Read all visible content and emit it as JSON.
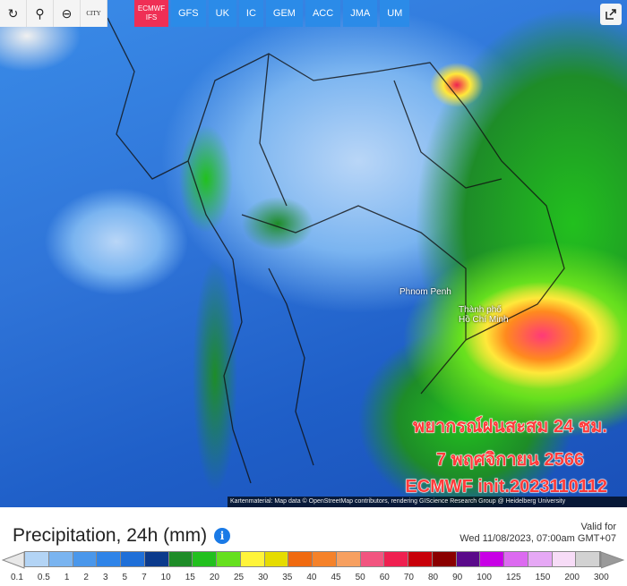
{
  "toolbar": {
    "buttons": [
      {
        "name": "refresh",
        "icon": "↻"
      },
      {
        "name": "location",
        "icon": "⚲"
      },
      {
        "name": "zoom",
        "icon": "⊖"
      },
      {
        "name": "city",
        "label": "CITY"
      }
    ],
    "models": [
      {
        "label": "ECMWF IFS",
        "active": true
      },
      {
        "label": "GFS"
      },
      {
        "label": "UK"
      },
      {
        "label": "IC"
      },
      {
        "label": "GEM"
      },
      {
        "label": "ACC"
      },
      {
        "label": "JMA"
      },
      {
        "label": "UM"
      }
    ]
  },
  "map": {
    "cities": [
      "Phnom Penh",
      "Thành phố",
      "Hồ Chí Minh"
    ],
    "overlay": [
      "พยากรณ์ฝนสะสม 24 ชม.",
      "7 พฤศจิกายน 2566",
      "ECMWF init.2023110112"
    ],
    "attribution": "Kartenmaterial: Map data © OpenStreetMap contributors, rendering GIScience Research Group @ Heidelberg University"
  },
  "legend": {
    "title": "Precipitation, 24h (mm)",
    "valid_label": "Valid for",
    "valid_time": "Wed 11/08/2023, 07:00am GMT+07",
    "ticks": [
      "0.1",
      "0.5",
      "1",
      "2",
      "3",
      "5",
      "7",
      "10",
      "15",
      "20",
      "25",
      "30",
      "35",
      "40",
      "45",
      "50",
      "60",
      "70",
      "80",
      "90",
      "100",
      "125",
      "150",
      "200",
      "300"
    ],
    "colors": [
      "#b3d4f5",
      "#7ab4f0",
      "#4a97eb",
      "#2f84e8",
      "#1f6fd8",
      "#0b3a8c",
      "#1e8c28",
      "#22c01e",
      "#66e01e",
      "#fff43a",
      "#e6dc00",
      "#f06a10",
      "#f5822a",
      "#f7a060",
      "#f25580",
      "#ef2050",
      "#c8000a",
      "#8a0000",
      "#5a0a8a",
      "#c800e6",
      "#dc6af0",
      "#e6a8f5",
      "#f7dcf7",
      "#d2d2d2"
    ],
    "under_color": "#e8e8e8",
    "over_color": "#9a9a9a"
  }
}
